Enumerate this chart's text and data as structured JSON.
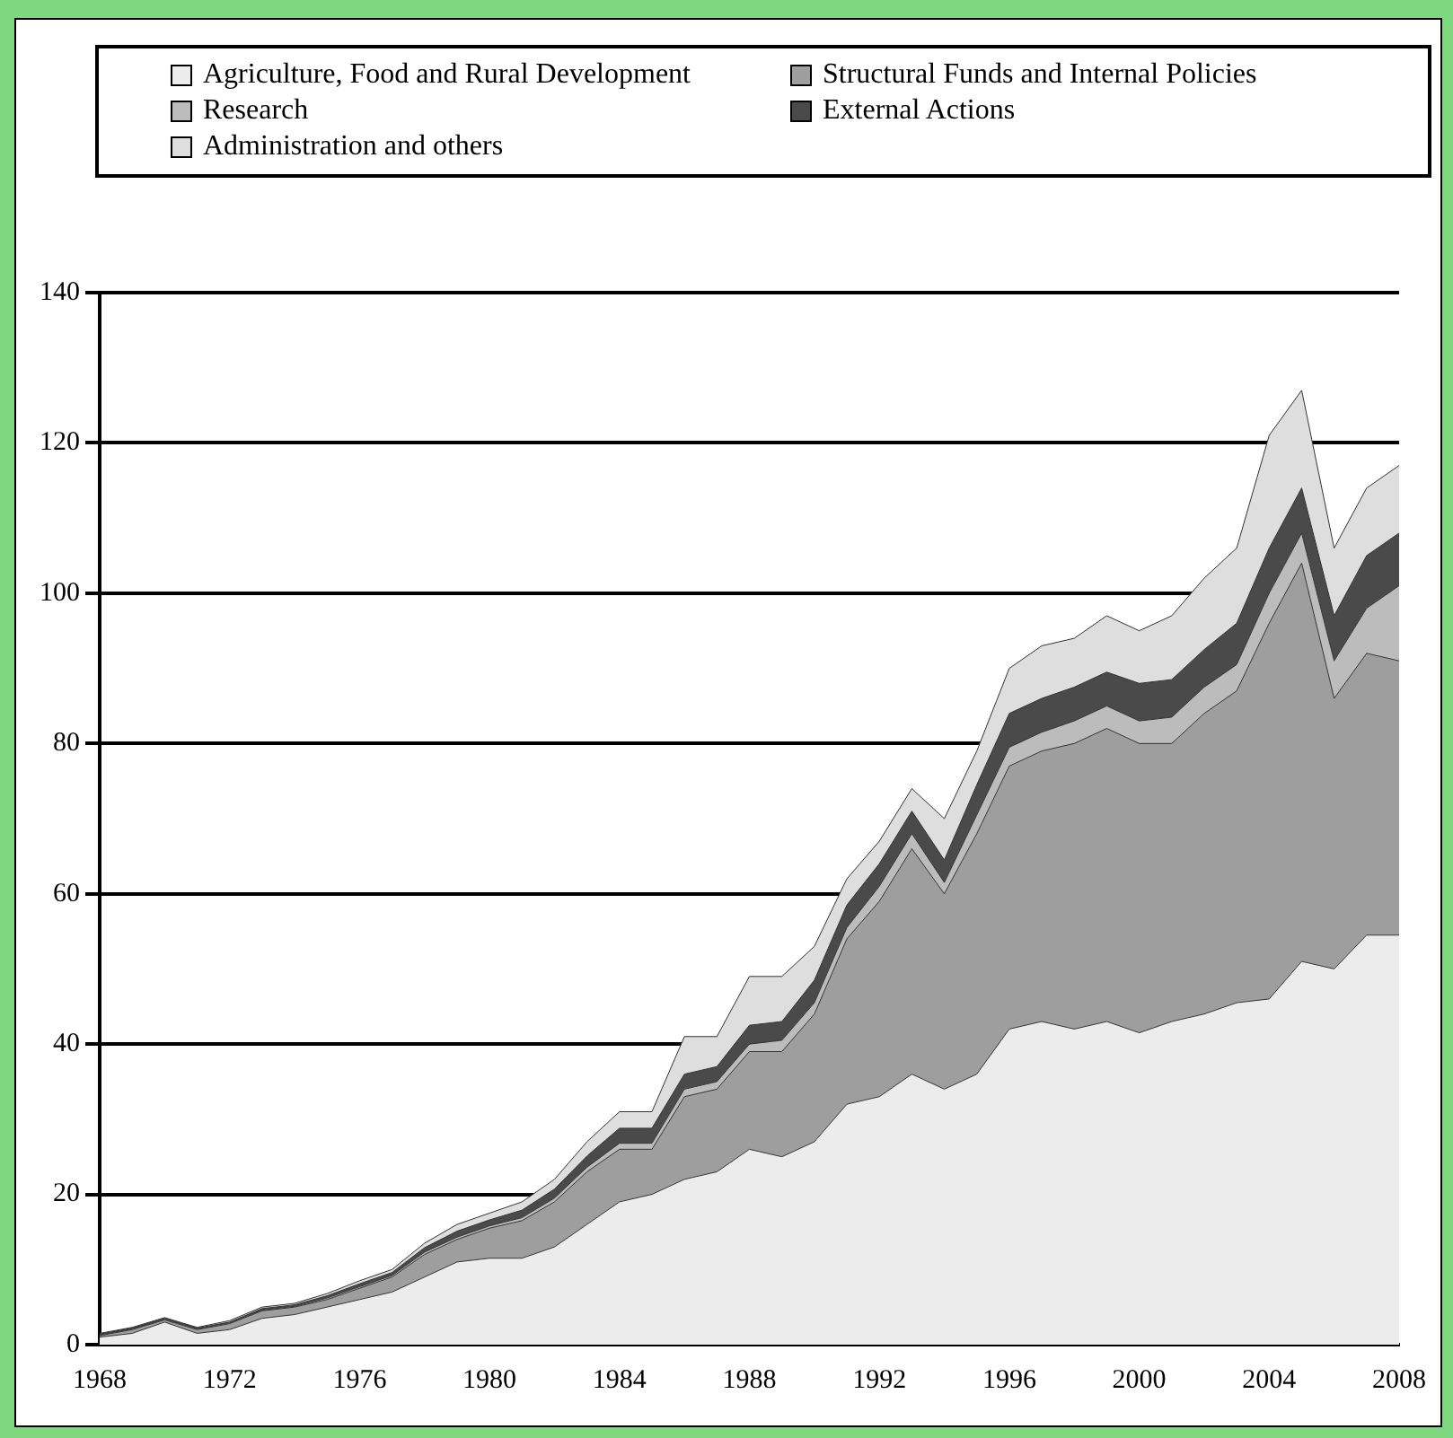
{
  "chart_data": {
    "type": "area",
    "stacked": true,
    "legend": "top",
    "grid": "y",
    "x": [
      1968,
      1969,
      1970,
      1971,
      1972,
      1973,
      1974,
      1975,
      1976,
      1977,
      1978,
      1979,
      1980,
      1981,
      1982,
      1983,
      1984,
      1985,
      1986,
      1987,
      1988,
      1989,
      1990,
      1991,
      1992,
      1993,
      1994,
      1995,
      1996,
      1997,
      1998,
      1999,
      2000,
      2001,
      2002,
      2003,
      2004,
      2005,
      2006,
      2007,
      2008
    ],
    "xlim": [
      1968,
      2008
    ],
    "xticks": [
      1968,
      1972,
      1976,
      1980,
      1984,
      1988,
      1992,
      1996,
      2000,
      2004,
      2008
    ],
    "ylim": [
      0,
      140
    ],
    "yticks": [
      0,
      20,
      40,
      60,
      80,
      100,
      120,
      140
    ],
    "series": [
      {
        "name": "Agriculture, Food and Rural Development",
        "color": "#ececec",
        "values": [
          1,
          1.5,
          3,
          1.5,
          2,
          3.5,
          4,
          5,
          6,
          7,
          9,
          11,
          11.5,
          11.5,
          13,
          16,
          19,
          20,
          22,
          23,
          26,
          25,
          27,
          32,
          33,
          36,
          34,
          36,
          42,
          43,
          42,
          43,
          41.5,
          43,
          44,
          45.5,
          46,
          51,
          50,
          54.5,
          54.5
        ]
      },
      {
        "name": "Structural Funds and Internal Policies",
        "color": "#9e9e9e",
        "values": [
          0.2,
          0.5,
          0.3,
          0.5,
          0.8,
          1,
          1,
          1,
          1.5,
          2,
          3,
          3,
          4,
          5,
          6,
          7,
          7,
          6,
          11,
          11,
          13,
          14,
          17,
          22,
          26,
          30,
          26,
          32,
          35,
          36,
          38,
          39,
          38.5,
          37,
          40,
          41.5,
          50,
          53,
          36,
          37.5,
          36.5
        ]
      },
      {
        "name": "Research",
        "color": "#bcbcbc",
        "values": [
          0.1,
          0.1,
          0.1,
          0.1,
          0.1,
          0.1,
          0.1,
          0.2,
          0.2,
          0.2,
          0.3,
          0.3,
          0.3,
          0.4,
          0.5,
          0.6,
          0.8,
          0.8,
          1,
          1,
          1,
          1.5,
          1.5,
          1.5,
          2,
          2,
          1.5,
          2.5,
          2.5,
          2.5,
          3,
          3,
          3,
          3.5,
          3.5,
          3.5,
          4,
          4,
          5,
          6,
          10
        ]
      },
      {
        "name": "External Actions",
        "color": "#4a4a4a",
        "values": [
          0.1,
          0.1,
          0.1,
          0.1,
          0.1,
          0.2,
          0.2,
          0.3,
          0.4,
          0.4,
          0.6,
          0.8,
          0.8,
          1,
          1.2,
          1.5,
          2,
          2,
          2,
          2,
          2.5,
          2.5,
          3,
          3,
          3,
          3,
          3,
          4,
          4.5,
          4.5,
          4.5,
          4.5,
          5,
          5,
          5,
          5.5,
          6,
          6,
          6,
          7,
          7
        ]
      },
      {
        "name": "Administration and others",
        "color": "#dedede",
        "values": [
          0.1,
          0.1,
          0.1,
          0.1,
          0.2,
          0.2,
          0.2,
          0.3,
          0.4,
          0.4,
          0.6,
          0.9,
          0.9,
          1.1,
          1.3,
          1.9,
          2.2,
          2.2,
          5,
          4,
          6.5,
          6,
          4.5,
          3.5,
          3,
          3,
          5.5,
          4.5,
          6,
          7,
          6.5,
          7.5,
          7,
          8.5,
          9.5,
          10,
          15,
          13,
          9,
          9,
          9
        ]
      }
    ]
  }
}
